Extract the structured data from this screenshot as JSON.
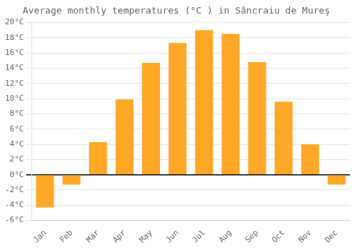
{
  "chart_data": {
    "type": "bar",
    "title": "Average monthly temperatures (°C ) in Sâncraiu de Mureş",
    "categories": [
      "Jan",
      "Feb",
      "Mar",
      "Apr",
      "May",
      "Jun",
      "Jul",
      "Aug",
      "Sep",
      "Oct",
      "Nov",
      "Dec"
    ],
    "values": [
      -4.3,
      -1.3,
      4.3,
      9.9,
      14.7,
      17.3,
      19.0,
      18.5,
      14.8,
      9.6,
      4.0,
      -1.3
    ],
    "color": "#FFA726",
    "ylim": [
      -6,
      20
    ],
    "yticks": [
      {
        "value": -6,
        "label": "-6°C"
      },
      {
        "value": -4,
        "label": "-4°C"
      },
      {
        "value": -2,
        "label": "-2°C"
      },
      {
        "value": 0,
        "label": "0°C"
      },
      {
        "value": 2,
        "label": "2°C"
      },
      {
        "value": 4,
        "label": "4°C"
      },
      {
        "value": 6,
        "label": "6°C"
      },
      {
        "value": 8,
        "label": "8°C"
      },
      {
        "value": 10,
        "label": "10°C"
      },
      {
        "value": 12,
        "label": "12°C"
      },
      {
        "value": 14,
        "label": "14°C"
      },
      {
        "value": 16,
        "label": "16°C"
      },
      {
        "value": 18,
        "label": "18°C"
      },
      {
        "value": 20,
        "label": "20°C"
      }
    ],
    "grid": true
  }
}
